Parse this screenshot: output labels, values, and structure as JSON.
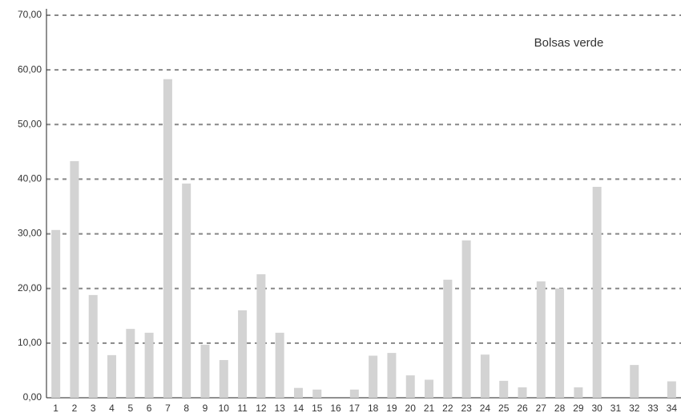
{
  "chart_data": {
    "type": "bar",
    "categories": [
      "1",
      "2",
      "3",
      "4",
      "5",
      "6",
      "7",
      "8",
      "9",
      "10",
      "11",
      "12",
      "13",
      "14",
      "15",
      "16",
      "17",
      "18",
      "19",
      "20",
      "21",
      "22",
      "23",
      "24",
      "25",
      "26",
      "27",
      "28",
      "29",
      "30",
      "31",
      "32",
      "33",
      "34"
    ],
    "series": [
      {
        "name": "Bolsas verde",
        "color": "#d3d3d3",
        "values": [
          30.7,
          43.3,
          18.8,
          7.8,
          12.6,
          11.9,
          58.3,
          39.2,
          9.7,
          6.9,
          16.0,
          22.6,
          11.9,
          1.8,
          1.5,
          0,
          1.5,
          7.7,
          8.2,
          4.1,
          3.3,
          21.6,
          28.8,
          7.9,
          3.1,
          1.9,
          21.3,
          20.0,
          1.9,
          38.6,
          0,
          6.0,
          0,
          3.0
        ]
      }
    ],
    "ylim": [
      0,
      70
    ],
    "yticks": [
      {
        "value": 0,
        "label": "0,00"
      },
      {
        "value": 10,
        "label": "10,00"
      },
      {
        "value": 20,
        "label": "20,00"
      },
      {
        "value": 30,
        "label": "30,00"
      },
      {
        "value": 40,
        "label": "40,00"
      },
      {
        "value": 50,
        "label": "50,00"
      },
      {
        "value": 60,
        "label": "60,00"
      },
      {
        "value": 70,
        "label": "70,00"
      }
    ],
    "grid": true
  }
}
